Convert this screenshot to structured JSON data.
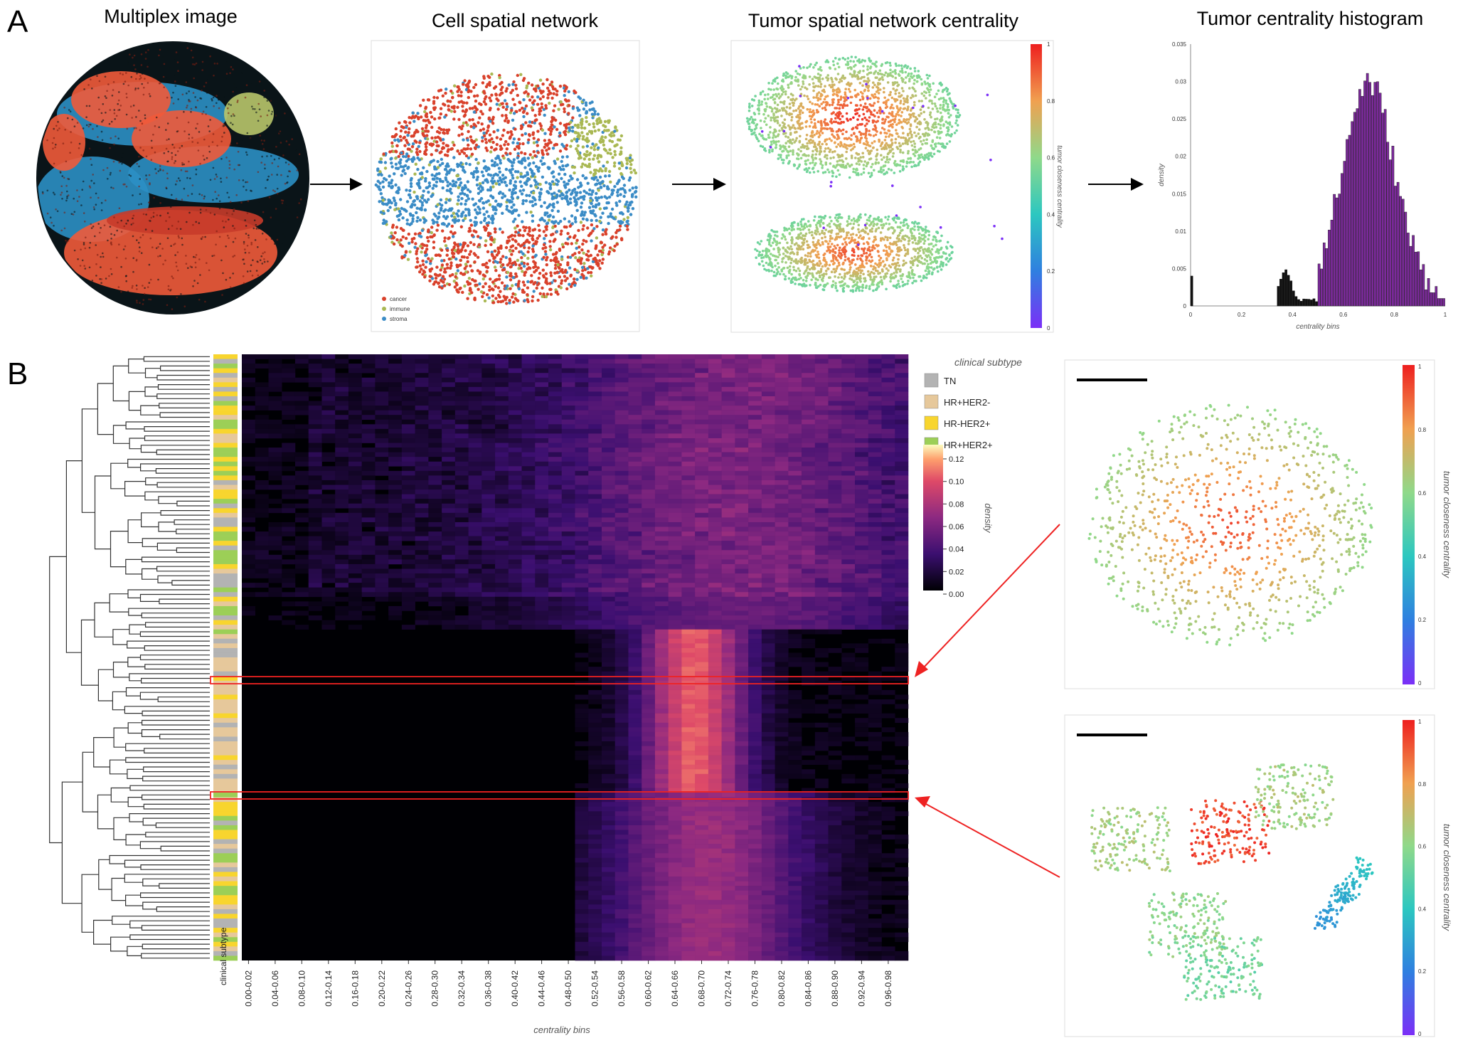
{
  "panel_labels": {
    "a": "A",
    "b": "B"
  },
  "panel_a": {
    "titles": {
      "multiplex": "Multiplex image",
      "network": "Cell spatial network",
      "centrality": "Tumor spatial network centrality",
      "histogram": "Tumor centrality histogram"
    },
    "cell_legend": [
      {
        "label": "cancer",
        "color": "#d9412b"
      },
      {
        "label": "immune",
        "color": "#a9b853"
      },
      {
        "label": "stroma",
        "color": "#3b8cc6"
      }
    ],
    "colorbar": {
      "label": "tumor closeness centrality",
      "ticks": [
        "1",
        "0.8",
        "0.6",
        "0.4",
        "0.2",
        "0"
      ]
    }
  },
  "histogram": {
    "ylabel": "density",
    "xlabel": "centrality bins",
    "y_ticks": [
      "0.035",
      "0.03",
      "0.025",
      "0.02",
      "0.015",
      "0.01",
      "0.005",
      "0"
    ],
    "x_ticks": [
      "0",
      "0.2",
      "0.4",
      "0.6",
      "0.8",
      "1"
    ]
  },
  "heatmap": {
    "row_label": "clinical subtype",
    "xlabel": "centrality bins",
    "x_ticks": [
      "0.00-0.02",
      "0.04-0.06",
      "0.08-0.10",
      "0.12-0.14",
      "0.16-0.18",
      "0.20-0.22",
      "0.24-0.26",
      "0.28-0.30",
      "0.32-0.34",
      "0.36-0.38",
      "0.40-0.42",
      "0.44-0.46",
      "0.48-0.50",
      "0.52-0.54",
      "0.56-0.58",
      "0.60-0.62",
      "0.64-0.66",
      "0.68-0.70",
      "0.72-0.74",
      "0.76-0.78",
      "0.80-0.82",
      "0.84-0.86",
      "0.88-0.90",
      "0.92-0.94",
      "0.96-0.98"
    ],
    "legend_title": "clinical subtype",
    "subtypes": [
      {
        "label": "TN",
        "color": "#b3b3b3"
      },
      {
        "label": "HR+HER2-",
        "color": "#e6c89b"
      },
      {
        "label": "HR-HER2+",
        "color": "#f8d52e"
      },
      {
        "label": "HR+HER2+",
        "color": "#9ccf57"
      }
    ],
    "colorbar_label": "density",
    "colorbar_ticks": [
      "0.12",
      "0.10",
      "0.08",
      "0.06",
      "0.04",
      "0.02",
      "0.00"
    ]
  },
  "right_panels": {
    "colorbar_label": "tumor closeness centrality",
    "ticks": [
      "1",
      "0.8",
      "0.6",
      "0.4",
      "0.2",
      "0"
    ]
  }
}
